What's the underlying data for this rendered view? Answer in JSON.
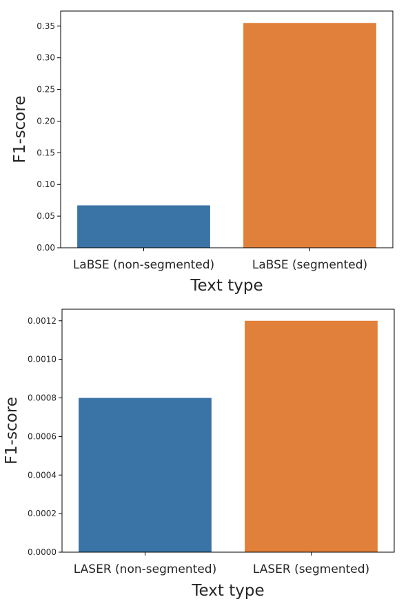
{
  "chart_data": [
    {
      "type": "bar",
      "categories": [
        "LaBSE (non-segmented)",
        "LaBSE (segmented)"
      ],
      "values": [
        0.067,
        0.355
      ],
      "colors": [
        "#3a73a5",
        "#e1803a"
      ],
      "xlabel": "Text type",
      "ylabel": "F1-score",
      "ylim": [
        0,
        0.3738
      ],
      "yticks": [
        0.0,
        0.05,
        0.1,
        0.15,
        0.2,
        0.25,
        0.3,
        0.35
      ],
      "ytick_labels": [
        "0.00",
        "0.05",
        "0.10",
        "0.15",
        "0.20",
        "0.25",
        "0.30",
        "0.35"
      ],
      "grid": false,
      "legend": "none"
    },
    {
      "type": "bar",
      "categories": [
        "LASER (non-segmented)",
        "LASER (segmented)"
      ],
      "values": [
        0.0008,
        0.0012
      ],
      "colors": [
        "#3a73a5",
        "#e1803a"
      ],
      "xlabel": "Text type",
      "ylabel": "F1-score",
      "ylim": [
        0,
        0.00126
      ],
      "yticks": [
        0.0,
        0.0002,
        0.0004,
        0.0006,
        0.0008,
        0.001,
        0.0012
      ],
      "ytick_labels": [
        "0.0000",
        "0.0002",
        "0.0004",
        "0.0006",
        "0.0008",
        "0.0010",
        "0.0012"
      ],
      "grid": false,
      "legend": "none"
    }
  ]
}
